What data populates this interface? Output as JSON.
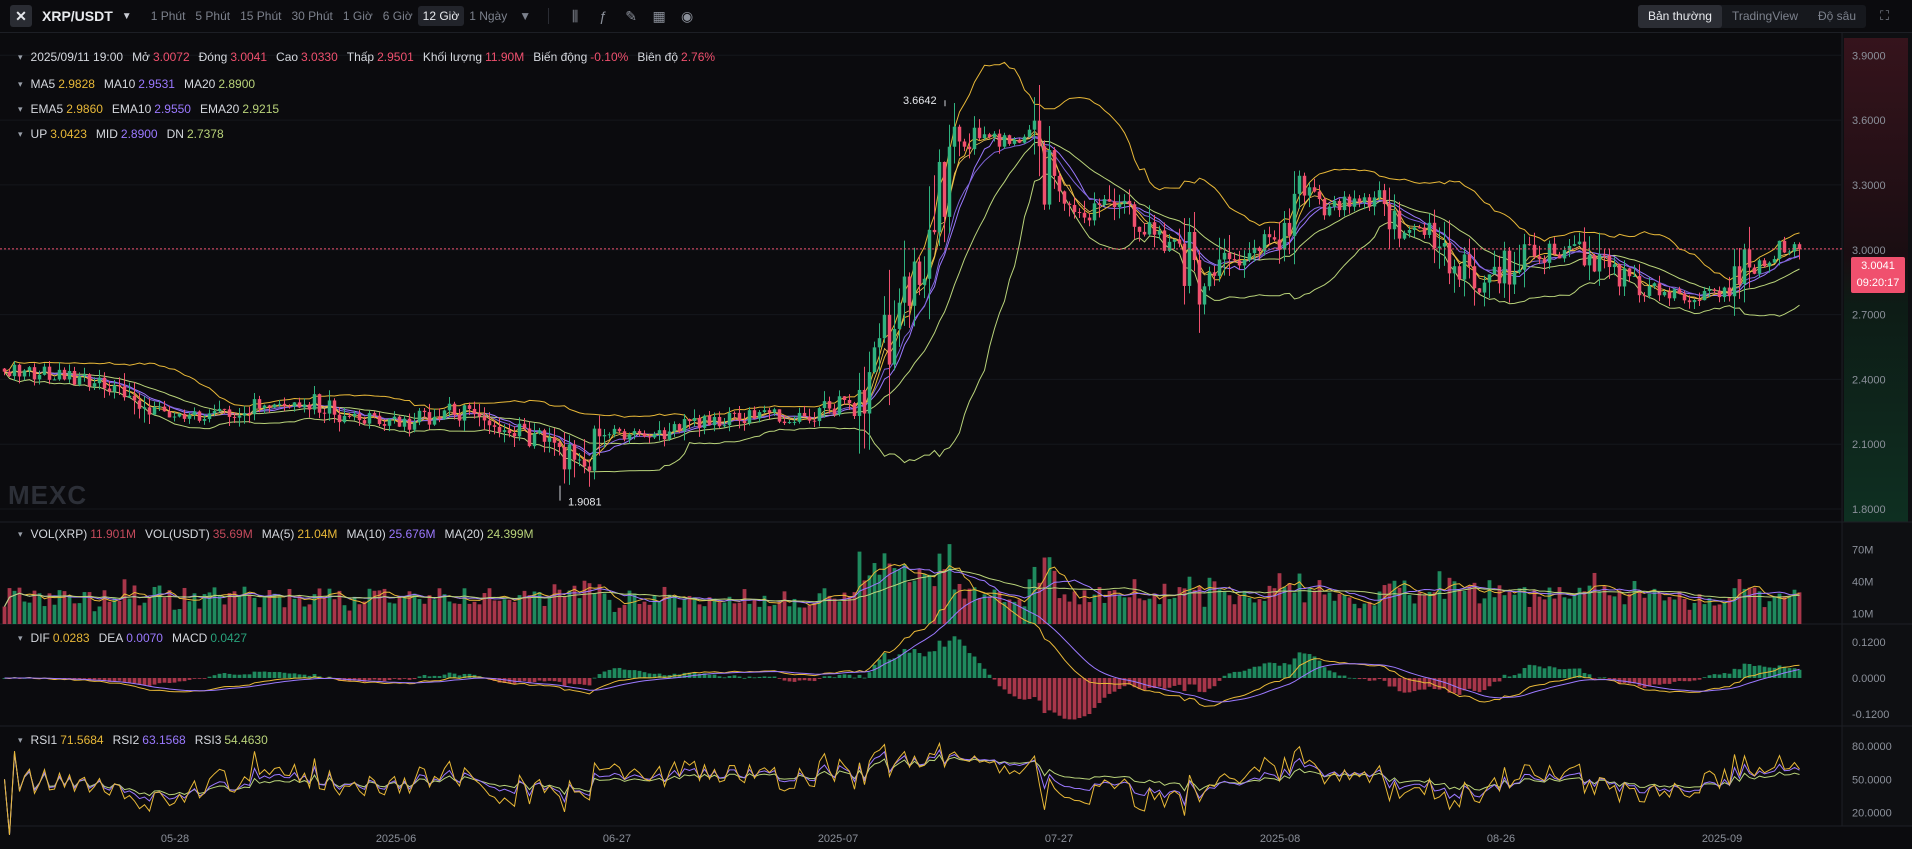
{
  "toolbar": {
    "pair": "XRP/USDT",
    "timeframes": [
      "1 Phút",
      "5 Phút",
      "15 Phút",
      "30 Phút",
      "1 Giờ",
      "6 Giờ",
      "12 Giờ",
      "1 Ngày"
    ],
    "active_timeframe": "12 Giờ",
    "tools": [
      "candle-type-icon",
      "indicator-fx-icon",
      "pencil-icon",
      "grid-layout-icon",
      "camera-icon"
    ],
    "views": [
      "Bản thường",
      "TradingView",
      "Độ sâu"
    ],
    "active_view": "Bản thường"
  },
  "ohlc": {
    "date": "2025/09/11 19:00",
    "open_label": "Mở",
    "open": "3.0072",
    "close_label": "Đóng",
    "close": "3.0041",
    "high_label": "Cao",
    "high": "3.0330",
    "low_label": "Thấp",
    "low": "2.9501",
    "vol_label": "Khối lượng",
    "vol": "11.90M",
    "change_label": "Biến động",
    "change": "-0.10%",
    "amp_label": "Biên độ",
    "amp": "2.76%"
  },
  "ma": {
    "ma5_label": "MA5",
    "ma5": "2.9828",
    "ma10_label": "MA10",
    "ma10": "2.9531",
    "ma20_label": "MA20",
    "ma20": "2.8900"
  },
  "ema": {
    "ema5_label": "EMA5",
    "ema5": "2.9860",
    "ema10_label": "EMA10",
    "ema10": "2.9550",
    "ema20_label": "EMA20",
    "ema20": "2.9215"
  },
  "boll": {
    "up_label": "UP",
    "up": "3.0423",
    "mid_label": "MID",
    "mid": "2.8900",
    "dn_label": "DN",
    "dn": "2.7378"
  },
  "vol_legend": {
    "vx_label": "VOL(XRP)",
    "vx": "11.901M",
    "vu_label": "VOL(USDT)",
    "vu": "35.69M",
    "m5_label": "MA(5)",
    "m5": "21.04M",
    "m10_label": "MA(10)",
    "m10": "25.676M",
    "m20_label": "MA(20)",
    "m20": "24.399M"
  },
  "macd_legend": {
    "dif_label": "DIF",
    "dif": "0.0283",
    "dea_label": "DEA",
    "dea": "0.0070",
    "macd_label": "MACD",
    "macd": "0.0427"
  },
  "rsi_legend": {
    "r1_label": "RSI1",
    "r1": "71.5684",
    "r2_label": "RSI2",
    "r2": "63.1568",
    "r3_label": "RSI3",
    "r3": "54.4630"
  },
  "current_price": "3.0041",
  "countdown": "09:20:17",
  "watermark": "MEXC",
  "colors": {
    "up": "#2fb27f",
    "down": "#f0506e",
    "bg": "#0b0b0e",
    "ma5": "#e8b838",
    "ma10": "#9b79ff",
    "ma20": "#b9d37a"
  },
  "chart_data": [
    {
      "type": "candlestick",
      "pane": "price",
      "y_ticks": [
        "3.9000",
        "3.6000",
        "3.3000",
        "3.0000",
        "2.7000",
        "2.4000",
        "2.1000",
        "1.8000"
      ],
      "ylim": [
        1.74,
        3.98
      ],
      "x_ticks": [
        "05-28",
        "2025-06",
        "06-27",
        "2025-07",
        "07-27",
        "2025-08",
        "08-26",
        "2025-09"
      ],
      "annotations": [
        {
          "label": "3.6642",
          "value": 3.6642,
          "kind": "high"
        },
        {
          "label": "1.9081",
          "value": 1.9081,
          "kind": "low"
        }
      ],
      "current_price": 3.0041,
      "close_trend_anchors": [
        [
          0,
          2.45
        ],
        [
          10,
          2.42
        ],
        [
          20,
          2.38
        ],
        [
          30,
          2.25
        ],
        [
          40,
          2.22
        ],
        [
          50,
          2.28
        ],
        [
          60,
          2.3
        ],
        [
          70,
          2.22
        ],
        [
          80,
          2.2
        ],
        [
          90,
          2.26
        ],
        [
          100,
          2.18
        ],
        [
          110,
          2.1
        ],
        [
          115,
          2.0
        ],
        [
          120,
          2.15
        ],
        [
          130,
          2.14
        ],
        [
          140,
          2.2
        ],
        [
          150,
          2.24
        ],
        [
          160,
          2.22
        ],
        [
          170,
          2.3
        ],
        [
          175,
          2.55
        ],
        [
          180,
          2.85
        ],
        [
          185,
          3.05
        ],
        [
          190,
          3.45
        ],
        [
          195,
          3.52
        ],
        [
          200,
          3.5
        ],
        [
          205,
          3.5
        ],
        [
          210,
          3.22
        ],
        [
          215,
          3.16
        ],
        [
          220,
          3.22
        ],
        [
          225,
          3.15
        ],
        [
          230,
          3.06
        ],
        [
          235,
          3.02
        ],
        [
          240,
          2.82
        ],
        [
          245,
          2.95
        ],
        [
          250,
          3.02
        ],
        [
          255,
          3.06
        ],
        [
          260,
          3.25
        ],
        [
          265,
          3.2
        ],
        [
          270,
          3.22
        ],
        [
          275,
          3.25
        ],
        [
          280,
          3.1
        ],
        [
          285,
          3.08
        ],
        [
          290,
          2.95
        ],
        [
          295,
          2.82
        ],
        [
          300,
          2.9
        ],
        [
          305,
          3.05
        ],
        [
          310,
          2.98
        ],
        [
          315,
          3.02
        ],
        [
          320,
          2.9
        ],
        [
          325,
          2.85
        ],
        [
          330,
          2.8
        ],
        [
          335,
          2.78
        ],
        [
          340,
          2.8
        ],
        [
          345,
          2.82
        ],
        [
          350,
          2.95
        ],
        [
          355,
          3.0
        ],
        [
          359,
          3.0041
        ]
      ]
    },
    {
      "type": "bar",
      "pane": "volume",
      "y_ticks": [
        "70M",
        "40M",
        "10M"
      ],
      "ylim": [
        0,
        90
      ]
    },
    {
      "type": "histogram+line",
      "pane": "macd",
      "y_ticks": [
        "0.1200",
        "0.0000",
        "-0.1200"
      ],
      "ylim": [
        -0.16,
        0.18
      ]
    },
    {
      "type": "line",
      "pane": "rsi",
      "y_ticks": [
        "80.0000",
        "50.0000",
        "20.0000"
      ],
      "ylim": [
        8,
        98
      ]
    }
  ]
}
